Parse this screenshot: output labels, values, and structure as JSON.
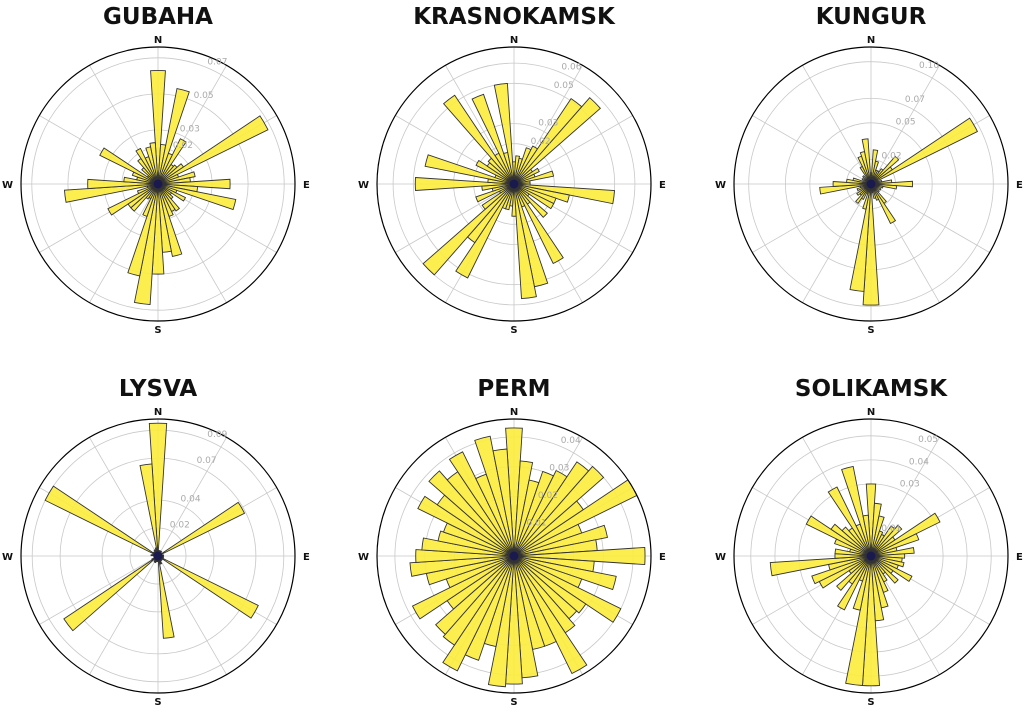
{
  "colors": {
    "bar_fill": "#fdec3c",
    "bar_stroke": "#333333",
    "grid": "#c8c8c8",
    "tick_label": "#aaaaaa",
    "outline": "#000000",
    "center": "#1a1a4e"
  },
  "chart_data": [
    {
      "type": "polar-bar",
      "title": "GUBAHA",
      "rmax": 0.076,
      "rticks": [
        0.02,
        0.03,
        0.05,
        0.07
      ],
      "rtick_labels": [
        "0.02",
        "0.03",
        "0.05",
        "0.07"
      ],
      "compass": {
        "n": "N",
        "e": "E",
        "s": "S",
        "w": "W"
      },
      "values": [
        0.063,
        0.022,
        0.054,
        0.018,
        0.028,
        0.013,
        0.014,
        0.017,
        0.068,
        0.012,
        0.021,
        0.018,
        0.04,
        0.022,
        0.044,
        0.011,
        0.017,
        0.009,
        0.011,
        0.018,
        0.017,
        0.019,
        0.041,
        0.038,
        0.05,
        0.067,
        0.052,
        0.019,
        0.009,
        0.01,
        0.02,
        0.02,
        0.031,
        0.012,
        0.006,
        0.052,
        0.039,
        0.019,
        0.012,
        0.015,
        0.036,
        0.007,
        0.012,
        0.017,
        0.022,
        0.016,
        0.021,
        0.023
      ]
    },
    {
      "type": "polar-bar",
      "title": "KRASNOKAMSK",
      "rmax": 0.068,
      "rticks": [
        0.02,
        0.03,
        0.05,
        0.06
      ],
      "rtick_labels": [
        "0.02",
        "0.03",
        "0.05",
        "0.06"
      ],
      "compass": {
        "n": "N",
        "e": "E",
        "s": "S",
        "w": "W"
      },
      "values": [
        0.011,
        0.014,
        0.013,
        0.019,
        0.021,
        0.051,
        0.057,
        0.011,
        0.014,
        0.011,
        0.02,
        0.008,
        0.008,
        0.05,
        0.028,
        0.022,
        0.022,
        0.009,
        0.022,
        0.012,
        0.044,
        0.012,
        0.052,
        0.057,
        0.016,
        0.011,
        0.013,
        0.013,
        0.052,
        0.035,
        0.06,
        0.019,
        0.008,
        0.02,
        0.011,
        0.016,
        0.049,
        0.013,
        0.045,
        0.01,
        0.021,
        0.016,
        0.017,
        0.053,
        0.017,
        0.047,
        0.016,
        0.05
      ]
    },
    {
      "type": "polar-bar",
      "title": "KUNGUR",
      "rmax": 0.112,
      "rticks": [
        0.02,
        0.05,
        0.07,
        0.1
      ],
      "rtick_labels": [
        "0.02",
        "0.05",
        "0.07",
        "0.10"
      ],
      "compass": {
        "n": "N",
        "e": "E",
        "s": "S",
        "w": "W"
      },
      "values": [
        0.009,
        0.028,
        0.019,
        0.012,
        0.012,
        0.015,
        0.03,
        0.021,
        0.097,
        0.006,
        0.009,
        0.017,
        0.034,
        0.021,
        0.01,
        0.006,
        0.009,
        0.004,
        0.009,
        0.019,
        0.036,
        0.014,
        0.012,
        0.007,
        0.099,
        0.088,
        0.021,
        0.008,
        0.014,
        0.019,
        0.012,
        0.014,
        0.006,
        0.012,
        0.009,
        0.042,
        0.031,
        0.02,
        0.015,
        0.004,
        0.008,
        0.004,
        0.009,
        0.005,
        0.016,
        0.024,
        0.027,
        0.037
      ]
    },
    {
      "type": "polar-bar",
      "title": "LYSVA",
      "rmax": 0.098,
      "rticks": [
        0.02,
        0.04,
        0.07,
        0.09
      ],
      "rtick_labels": [
        "0.02",
        "0.04",
        "0.07",
        "0.09"
      ],
      "compass": {
        "n": "N",
        "e": "E",
        "s": "S",
        "w": "W"
      },
      "values": [
        0.095,
        0.004,
        0.003,
        0.004,
        0.004,
        0.004,
        0.003,
        0.003,
        0.069,
        0.003,
        0.003,
        0.004,
        0.004,
        0.003,
        0.004,
        0.004,
        0.08,
        0.003,
        0.004,
        0.003,
        0.004,
        0.006,
        0.006,
        0.059,
        0.003,
        0.004,
        0.004,
        0.005,
        0.005,
        0.003,
        0.004,
        0.081,
        0.005,
        0.002,
        0.003,
        0.002,
        0.003,
        0.005,
        0.004,
        0.003,
        0.09,
        0.004,
        0.004,
        0.003,
        0.005,
        0.004,
        0.006,
        0.066
      ]
    },
    {
      "type": "polar-bar",
      "title": "PERM",
      "rmax": 0.046,
      "rticks": [
        0.01,
        0.02,
        0.03,
        0.04
      ],
      "rtick_labels": [
        "0.01",
        "0.02",
        "0.03",
        "0.04"
      ],
      "compass": {
        "n": "N",
        "e": "E",
        "s": "S",
        "w": "W"
      },
      "values": [
        0.043,
        0.032,
        0.026,
        0.03,
        0.032,
        0.038,
        0.04,
        0.028,
        0.046,
        0.024,
        0.032,
        0.028,
        0.044,
        0.027,
        0.035,
        0.024,
        0.04,
        0.029,
        0.028,
        0.031,
        0.044,
        0.032,
        0.032,
        0.041,
        0.043,
        0.044,
        0.031,
        0.037,
        0.043,
        0.036,
        0.035,
        0.027,
        0.038,
        0.024,
        0.03,
        0.035,
        0.033,
        0.031,
        0.026,
        0.025,
        0.036,
        0.031,
        0.038,
        0.034,
        0.039,
        0.029,
        0.041,
        0.036
      ]
    },
    {
      "type": "polar-bar",
      "title": "SOLIKAMSK",
      "rmax": 0.057,
      "rticks": [
        0.01,
        0.03,
        0.04,
        0.05
      ],
      "rtick_labels": [
        "0.01",
        "0.03",
        "0.04",
        "0.05"
      ],
      "compass": {
        "n": "N",
        "e": "E",
        "s": "S",
        "w": "W"
      },
      "values": [
        0.03,
        0.022,
        0.017,
        0.011,
        0.01,
        0.015,
        0.017,
        0.012,
        0.032,
        0.021,
        0.011,
        0.018,
        0.014,
        0.013,
        0.014,
        0.012,
        0.019,
        0.011,
        0.015,
        0.009,
        0.012,
        0.016,
        0.022,
        0.027,
        0.054,
        0.054,
        0.023,
        0.011,
        0.025,
        0.014,
        0.019,
        0.011,
        0.024,
        0.026,
        0.018,
        0.042,
        0.015,
        0.015,
        0.009,
        0.016,
        0.03,
        0.02,
        0.016,
        0.014,
        0.032,
        0.014,
        0.038,
        0.017
      ]
    }
  ]
}
